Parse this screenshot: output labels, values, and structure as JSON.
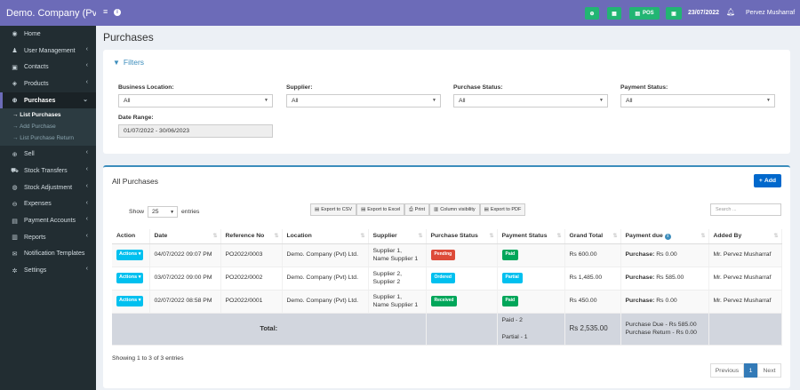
{
  "brand": "Demo. Company (Pvt)",
  "menu": [
    {
      "label": "Home",
      "icon": "tachometer-icon",
      "glyph": "◉",
      "chev": ""
    },
    {
      "label": "User Management",
      "icon": "users-icon",
      "glyph": "♟",
      "chev": "‹"
    },
    {
      "label": "Contacts",
      "icon": "address-book-icon",
      "glyph": "▣",
      "chev": "‹"
    },
    {
      "label": "Products",
      "icon": "cubes-icon",
      "glyph": "◈",
      "chev": "‹"
    },
    {
      "label": "Purchases",
      "icon": "arrow-circle-down-icon",
      "glyph": "⊕",
      "chev": "⌄"
    },
    {
      "label": "Sell",
      "icon": "arrow-circle-up-icon",
      "glyph": "⊕",
      "chev": "‹"
    },
    {
      "label": "Stock Transfers",
      "icon": "truck-icon",
      "glyph": "⛟",
      "chev": "‹"
    },
    {
      "label": "Stock Adjustment",
      "icon": "database-icon",
      "glyph": "◍",
      "chev": "‹"
    },
    {
      "label": "Expenses",
      "icon": "minus-circle-icon",
      "glyph": "⊖",
      "chev": "‹"
    },
    {
      "label": "Payment Accounts",
      "icon": "money-icon",
      "glyph": "▤",
      "chev": "‹"
    },
    {
      "label": "Reports",
      "icon": "bar-chart-icon",
      "glyph": "▥",
      "chev": "‹"
    },
    {
      "label": "Notification Templates",
      "icon": "envelope-icon",
      "glyph": "✉",
      "chev": ""
    },
    {
      "label": "Settings",
      "icon": "cog-icon",
      "glyph": "✲",
      "chev": "‹"
    }
  ],
  "submenu": [
    "→ List Purchases",
    "→ Add Purchase",
    "→ List Purchase Return"
  ],
  "topbar": {
    "menu_icon": "≡",
    "info_icon": "i",
    "pos_label": "POS",
    "date": "23/07/2022",
    "user": "Pervez Musharraf"
  },
  "page_title": "Purchases",
  "filters": {
    "title": "Filters",
    "business_location": {
      "label": "Business Location:",
      "value": "All"
    },
    "supplier": {
      "label": "Supplier:",
      "value": "All"
    },
    "purchase_status": {
      "label": "Purchase Status:",
      "value": "All"
    },
    "payment_status": {
      "label": "Payment Status:",
      "value": "All"
    },
    "date_range": {
      "label": "Date Range:",
      "value": "01/07/2022 - 30/06/2023"
    }
  },
  "table_box": {
    "title": "All Purchases",
    "add_label": "Add",
    "show_label": "Show",
    "show_value": "25",
    "entries_label": "entries",
    "exports": [
      "Export to CSV",
      "Export to Excel",
      "Print",
      "Column visibility",
      "Export to PDF"
    ],
    "search_placeholder": "Search ...",
    "columns": [
      "Action",
      "Date",
      "Reference No",
      "Location",
      "Supplier",
      "Purchase Status",
      "Payment Status",
      "Grand Total",
      "Payment due",
      "Added By"
    ],
    "rows": [
      {
        "action": "Actions",
        "date": "04/07/2022 09:07 PM",
        "ref": "PO2022/0003",
        "location": "Demo. Company (Pvt) Ltd.",
        "supplier1": "Supplier 1,",
        "supplier2": "Name Supplier 1",
        "purchase_status": "Pending",
        "status_color": "#dd4b39",
        "payment_status": "Paid",
        "pay_color": "#00a65a",
        "grand_total": "Rs 600.00",
        "due_label": "Purchase:",
        "due_value": "Rs 0.00",
        "added_by": "Mr. Pervez Musharraf"
      },
      {
        "action": "Actions",
        "date": "03/07/2022 09:00 PM",
        "ref": "PO2022/0002",
        "location": "Demo. Company (Pvt) Ltd.",
        "supplier1": "Supplier 2,",
        "supplier2": "Supplier 2",
        "purchase_status": "Ordered",
        "status_color": "#00c0ef",
        "payment_status": "Partial",
        "pay_color": "#00c0ef",
        "grand_total": "Rs 1,485.00",
        "due_label": "Purchase:",
        "due_value": "Rs 585.00",
        "added_by": "Mr. Pervez Musharraf"
      },
      {
        "action": "Actions",
        "date": "02/07/2022 08:58 PM",
        "ref": "PO2022/0001",
        "location": "Demo. Company (Pvt) Ltd.",
        "supplier1": "Supplier 1,",
        "supplier2": "Name Supplier 1",
        "purchase_status": "Received",
        "status_color": "#00a65a",
        "payment_status": "Paid",
        "pay_color": "#00a65a",
        "grand_total": "Rs 450.00",
        "due_label": "Purchase:",
        "due_value": "Rs 0.00",
        "added_by": "Mr. Pervez Musharraf"
      }
    ],
    "total": {
      "label": "Total:",
      "paid": "Paid - 2",
      "partial": "Partial - 1",
      "grand_total": "Rs 2,535.00",
      "purchase_due": "Purchase Due - Rs 585.00",
      "purchase_return": "Purchase Return - Rs 0.00"
    },
    "info": "Showing 1 to 3 of 3 entries",
    "pager": {
      "previous": "Previous",
      "page": "1",
      "next": "Next"
    }
  },
  "colors": {
    "brand": "#6c6bb8",
    "sidebar": "#222d32",
    "primary": "#3c8dbc",
    "add": "#0068cc",
    "green": "#22b573"
  }
}
